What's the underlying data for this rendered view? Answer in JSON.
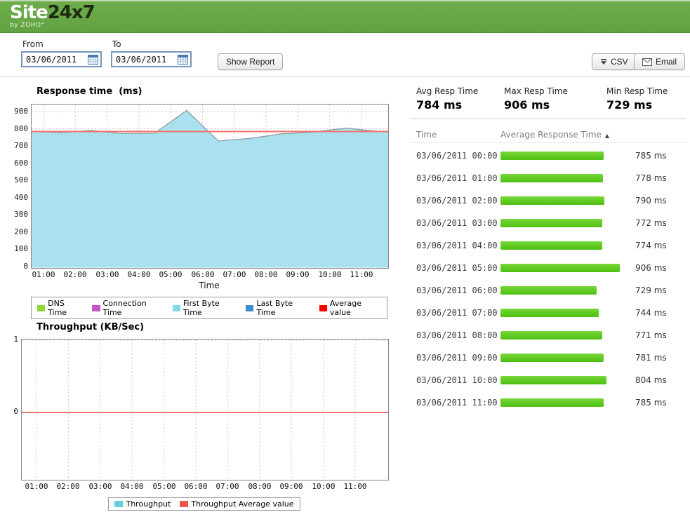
{
  "header": {
    "logo_site": "Site",
    "logo_24x7": "24x7",
    "logo_byline": "by ZOHO°"
  },
  "toolbar": {
    "from_label": "From",
    "to_label": "To",
    "from_value": "03/06/2011",
    "to_value": "03/06/2011",
    "show_report_label": "Show Report",
    "csv_label": "CSV",
    "email_label": "Email"
  },
  "stats": [
    {
      "label": "Avg Resp Time",
      "value": "784 ms"
    },
    {
      "label": "Max Resp Time",
      "value": "906 ms"
    },
    {
      "label": "Min Resp Time",
      "value": "729 ms"
    }
  ],
  "table": {
    "col_time": "Time",
    "col_avg": "Average Response Time",
    "sort_icon": "▲",
    "max_ms": 906,
    "rows": [
      {
        "time": "03/06/2011 00:00",
        "value_ms": 785,
        "value": "785 ms"
      },
      {
        "time": "03/06/2011 01:00",
        "value_ms": 778,
        "value": "778 ms"
      },
      {
        "time": "03/06/2011 02:00",
        "value_ms": 790,
        "value": "790 ms"
      },
      {
        "time": "03/06/2011 03:00",
        "value_ms": 772,
        "value": "772 ms"
      },
      {
        "time": "03/06/2011 04:00",
        "value_ms": 774,
        "value": "774 ms"
      },
      {
        "time": "03/06/2011 05:00",
        "value_ms": 906,
        "value": "906 ms"
      },
      {
        "time": "03/06/2011 06:00",
        "value_ms": 729,
        "value": "729 ms"
      },
      {
        "time": "03/06/2011 07:00",
        "value_ms": 744,
        "value": "744 ms"
      },
      {
        "time": "03/06/2011 08:00",
        "value_ms": 771,
        "value": "771 ms"
      },
      {
        "time": "03/06/2011 09:00",
        "value_ms": 781,
        "value": "781 ms"
      },
      {
        "time": "03/06/2011 10:00",
        "value_ms": 804,
        "value": "804 ms"
      },
      {
        "time": "03/06/2011 11:00",
        "value_ms": 785,
        "value": "785 ms"
      }
    ]
  },
  "colors": {
    "bar_green_top": "#77d738",
    "bar_green_bottom": "#4ec011",
    "header_green": "#62a242"
  },
  "chart_data": [
    {
      "type": "area",
      "title": "Response time  (ms)",
      "xlabel": "Time",
      "x": [
        "00:00",
        "01:00",
        "02:00",
        "03:00",
        "04:00",
        "05:00",
        "06:00",
        "07:00",
        "08:00",
        "09:00",
        "10:00",
        "11:00"
      ],
      "x_ticks": [
        "01:00",
        "02:00",
        "03:00",
        "04:00",
        "05:00",
        "06:00",
        "07:00",
        "08:00",
        "09:00",
        "10:00",
        "11:00"
      ],
      "y_ticks": [
        0,
        100,
        200,
        300,
        400,
        500,
        600,
        700,
        800,
        900
      ],
      "ylim": [
        0,
        900
      ],
      "grid": true,
      "series": [
        {
          "name": "First Byte Time",
          "values": [
            785,
            778,
            790,
            772,
            774,
            906,
            729,
            744,
            771,
            781,
            804,
            785
          ],
          "fill_color": "#A9E2EE",
          "stroke_color": "#8E9AA4"
        }
      ],
      "average_value": 784,
      "average_line_color": "#F4736B",
      "legend_position": "bottom",
      "legend": [
        {
          "label": "DNS Time",
          "color": "#8CD832"
        },
        {
          "label": "Connection Time",
          "color": "#C455C4"
        },
        {
          "label": "First Byte Time",
          "color": "#7FDBEA"
        },
        {
          "label": "Last Byte Time",
          "color": "#3E8EC9"
        },
        {
          "label": "Average value",
          "color": "#FF0000"
        }
      ]
    },
    {
      "type": "line",
      "title": "Throughput (KB/Sec)",
      "xlabel": "",
      "x": [
        "00:00",
        "01:00",
        "02:00",
        "03:00",
        "04:00",
        "05:00",
        "06:00",
        "07:00",
        "08:00",
        "09:00",
        "10:00",
        "11:00"
      ],
      "x_ticks": [
        "01:00",
        "02:00",
        "03:00",
        "04:00",
        "05:00",
        "06:00",
        "07:00",
        "08:00",
        "09:00",
        "10:00",
        "11:00"
      ],
      "y_ticks": [
        1,
        0
      ],
      "ylim": [
        -0.9,
        1
      ],
      "grid": true,
      "series": [
        {
          "name": "Throughput",
          "values": [
            0,
            0,
            0,
            0,
            0,
            0,
            0,
            0,
            0,
            0,
            0,
            0
          ],
          "stroke_color": "#63CFE3"
        }
      ],
      "average_value": 0,
      "average_line_color": "#F4736B",
      "legend_position": "bottom",
      "legend": [
        {
          "label": "Throughput",
          "color": "#63CFE3"
        },
        {
          "label": "Throughput Average value",
          "color": "#EE5A50"
        }
      ]
    }
  ]
}
